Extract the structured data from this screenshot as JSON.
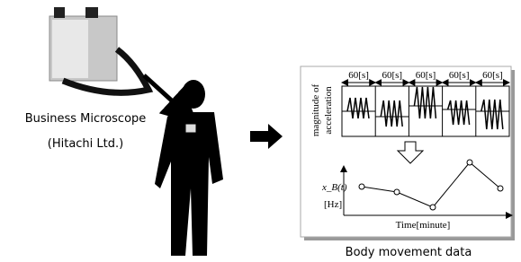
{
  "device": {
    "name": "Business Microscope",
    "maker": "(Hitachi Ltd.)"
  },
  "panel": {
    "caption": "Body movement data",
    "top": {
      "y_label": [
        "magnitude of",
        "acceleration"
      ],
      "windows": [
        "60[s]",
        "60[s]",
        "60[s]",
        "60[s]",
        "60[s]"
      ]
    },
    "bottom": {
      "y_label": "x_B(t)",
      "y_unit": "[Hz]",
      "x_label": "Time[minute]"
    }
  }
}
